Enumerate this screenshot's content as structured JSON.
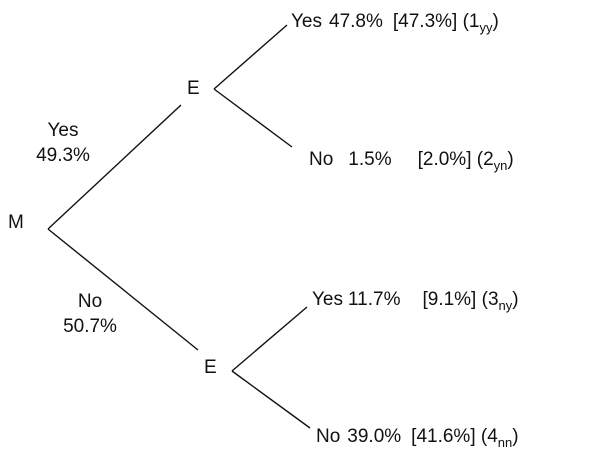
{
  "root": {
    "label": "M"
  },
  "branches": {
    "yes": {
      "label": "Yes",
      "pct": "49.3%",
      "node": "E",
      "outcomes": [
        {
          "label": "Yes",
          "pct": "47.8%",
          "bracket": "[47.3%]",
          "paren_num": "(1",
          "paren_sub": "yy",
          "paren_close": ")"
        },
        {
          "label": "No",
          "pct": "1.5%",
          "bracket": "[2.0%]",
          "paren_num": "(2",
          "paren_sub": "yn",
          "paren_close": ")"
        }
      ]
    },
    "no": {
      "label": "No",
      "pct": "50.7%",
      "node": "E",
      "outcomes": [
        {
          "label": "Yes",
          "pct": "11.7%",
          "bracket": "[9.1%]",
          "paren_num": "(3",
          "paren_sub": "ny",
          "paren_close": ")"
        },
        {
          "label": "No",
          "pct": "39.0%",
          "bracket": "[41.6%]",
          "paren_num": "(4",
          "paren_sub": "nn",
          "paren_close": ")"
        }
      ]
    }
  }
}
